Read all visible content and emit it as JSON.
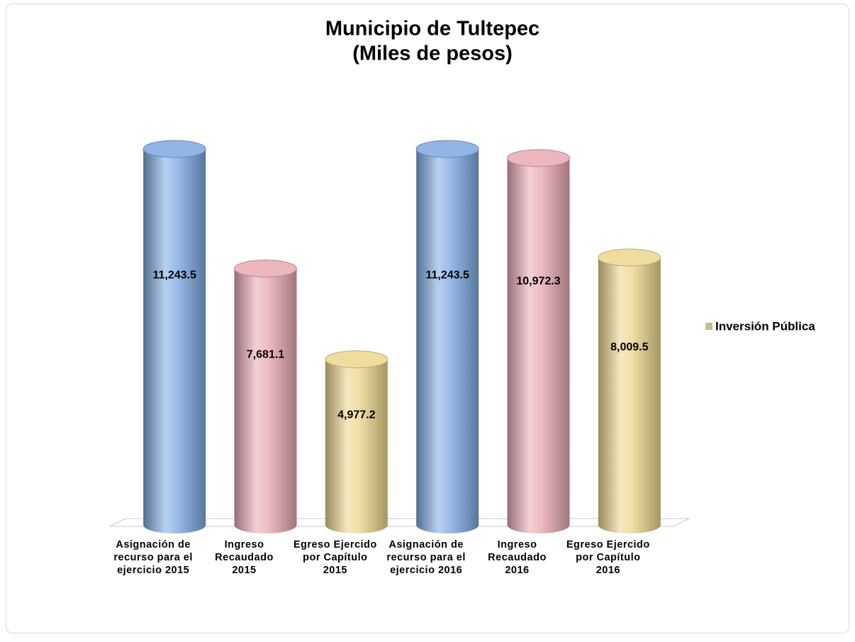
{
  "chart_data": {
    "type": "bar",
    "title": "Municipio de Tultepec",
    "subtitle": "(Miles de pesos)",
    "categories": [
      "Asignación de recurso para el ejercicio 2015",
      "Ingreso Recaudado 2015",
      "Egreso Ejercido por Capítulo 2015",
      "Asignación de recurso para el ejercicio 2016",
      "Ingreso Recaudado 2016",
      "Egreso Ejercido por Capítulo 2016"
    ],
    "series": [
      {
        "name": "Inversión Pública",
        "color": "#c9b98f",
        "values": [
          11243.5,
          7681.1,
          4977.2,
          11243.5,
          10972.3,
          8009.5
        ],
        "value_labels": [
          "11,243.5",
          "7,681.1",
          "4,977.2",
          "11,243.5",
          "10,972.3",
          "8,009.5"
        ],
        "colors": [
          "#7ea9e1",
          "#e7a9b2",
          "#ecd68e",
          "#7ea9e1",
          "#e7a9b2",
          "#ecd68e"
        ]
      }
    ],
    "legend": "right"
  }
}
